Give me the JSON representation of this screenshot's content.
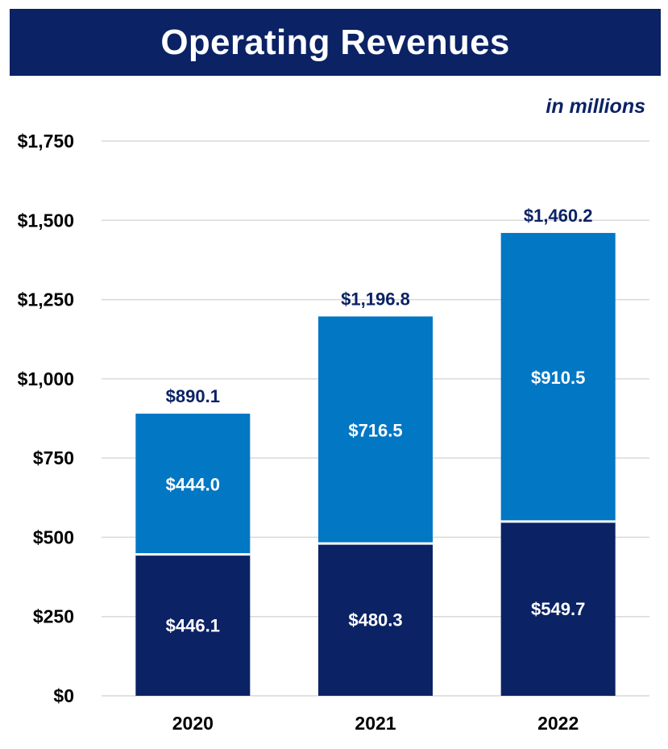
{
  "chart_data": {
    "type": "bar",
    "stacked": true,
    "title": "Operating Revenues",
    "units_note": "in millions",
    "categories": [
      "2020",
      "2021",
      "2022"
    ],
    "series": [
      {
        "values": [
          446.1,
          480.3,
          549.7
        ],
        "labels": [
          "$446.1",
          "$480.3",
          "$549.7"
        ],
        "color": "#0b2265"
      },
      {
        "values": [
          444.0,
          716.5,
          910.5
        ],
        "labels": [
          "$444.0",
          "$716.5",
          "$910.5"
        ],
        "color": "#0277c4"
      }
    ],
    "totals": [
      890.1,
      1196.8,
      1460.2
    ],
    "total_labels": [
      "$890.1",
      "$1,196.8",
      "$1,460.2"
    ],
    "ylim": [
      0,
      1750
    ],
    "yticks": [
      0,
      250,
      500,
      750,
      1000,
      1250,
      1500,
      1750
    ],
    "ytick_labels": [
      "$0",
      "$250",
      "$500",
      "$750",
      "$1,000",
      "$1,250",
      "$1,500",
      "$1,750"
    ],
    "grid": true,
    "gridline_color": "#d9d9d9",
    "legend": "none"
  }
}
